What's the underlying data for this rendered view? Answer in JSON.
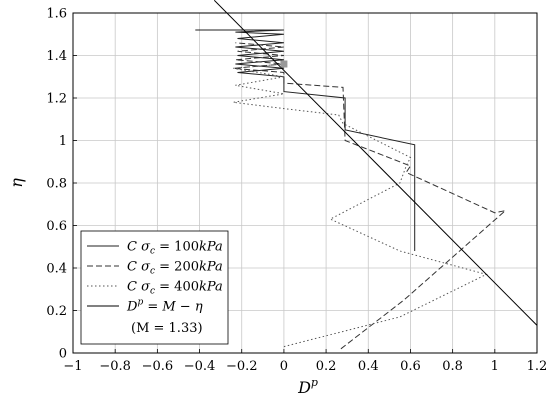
{
  "chart_data": {
    "type": "line",
    "title": "",
    "xlabel": "D^p",
    "ylabel": "η",
    "xlim": [
      -1,
      1.2
    ],
    "ylim": [
      0,
      1.6
    ],
    "xticks": [
      -1,
      -0.8,
      -0.6,
      -0.4,
      -0.2,
      0,
      0.2,
      0.4,
      0.6,
      0.8,
      1,
      1.2
    ],
    "yticks": [
      0,
      0.2,
      0.4,
      0.6,
      0.8,
      1,
      1.2,
      1.4,
      1.6
    ],
    "xtick_labels": [
      "−1",
      "−0.8",
      "−0.6",
      "−0.4",
      "−0.2",
      "0",
      "0.2",
      "0.4",
      "0.6",
      "0.8",
      "1",
      "1.2"
    ],
    "ytick_labels": [
      "0",
      "0.2",
      "0.4",
      "0.6",
      "0.8",
      "1",
      "1.2",
      "1.4",
      "1.6"
    ],
    "grid": true,
    "legend_position": "bottom-left",
    "series": [
      {
        "name": "C σc = 100kPa",
        "style": "solid",
        "color": "#222222",
        "points": [
          [
            0.62,
            0.48
          ],
          [
            0.62,
            0.98
          ],
          [
            0.29,
            1.05
          ],
          [
            0.29,
            1.2
          ],
          [
            0.0,
            1.23
          ],
          [
            0.0,
            1.3
          ],
          [
            -0.22,
            1.32
          ],
          [
            0.0,
            1.34
          ],
          [
            -0.23,
            1.36
          ],
          [
            0.0,
            1.38
          ],
          [
            -0.22,
            1.4
          ],
          [
            0.0,
            1.42
          ],
          [
            -0.23,
            1.44
          ],
          [
            0.0,
            1.46
          ],
          [
            -0.22,
            1.48
          ],
          [
            0.0,
            1.5
          ],
          [
            -0.23,
            1.51
          ],
          [
            0.0,
            1.52
          ],
          [
            -0.42,
            1.52
          ]
        ]
      },
      {
        "name": "C σc = 200kPa",
        "style": "dashed",
        "color": "#333333",
        "points": [
          [
            0.27,
            0.02
          ],
          [
            0.57,
            0.25
          ],
          [
            1.05,
            0.67
          ],
          [
            1.05,
            0.67
          ],
          [
            1.0,
            0.66
          ],
          [
            0.58,
            0.85
          ],
          [
            0.6,
            0.88
          ],
          [
            0.29,
            1.0
          ],
          [
            0.28,
            1.25
          ],
          [
            0.0,
            1.27
          ],
          [
            0.0,
            1.32
          ],
          [
            -0.24,
            1.34
          ],
          [
            0.0,
            1.36
          ],
          [
            -0.23,
            1.38
          ],
          [
            0.0,
            1.4
          ],
          [
            -0.22,
            1.42
          ],
          [
            0.0,
            1.44
          ],
          [
            -0.23,
            1.46
          ]
        ]
      },
      {
        "name": "C σc = 400kPa",
        "style": "dotted",
        "color": "#555555",
        "points": [
          [
            0.0,
            0.03
          ],
          [
            0.55,
            0.17
          ],
          [
            0.96,
            0.37
          ],
          [
            0.55,
            0.48
          ],
          [
            0.22,
            0.63
          ],
          [
            0.55,
            0.8
          ],
          [
            0.58,
            0.88
          ],
          [
            0.6,
            0.92
          ],
          [
            0.28,
            1.08
          ],
          [
            0.26,
            1.12
          ],
          [
            0.0,
            1.15
          ],
          [
            -0.24,
            1.18
          ],
          [
            0.0,
            1.22
          ],
          [
            -0.23,
            1.26
          ],
          [
            0.0,
            1.3
          ],
          [
            -0.24,
            1.34
          ],
          [
            0.0,
            1.36
          ]
        ]
      },
      {
        "name": "D^p = M − η",
        "style": "solid",
        "color": "#000000",
        "points": [
          [
            -0.33,
            1.66
          ],
          [
            1.2,
            0.13
          ]
        ]
      }
    ],
    "annotations": [
      "(M = 1.33)"
    ],
    "markers": [
      {
        "x": 0.0,
        "y": 1.36,
        "color": "#999999"
      }
    ]
  },
  "legend": {
    "entries": [
      {
        "prefix": "C ",
        "sigma": "σ",
        "sub": "c",
        "rest": " = 100",
        "unit": "kPa"
      },
      {
        "prefix": "C ",
        "sigma": "σ",
        "sub": "c",
        "rest": " = 200",
        "unit": "kPa"
      },
      {
        "prefix": "C ",
        "sigma": "σ",
        "sub": "c",
        "rest": " = 400",
        "unit": "kPa"
      },
      {
        "prefix": "D",
        "sup": "p",
        "rest": " = M − η"
      }
    ],
    "note": "(M = 1.33)"
  }
}
